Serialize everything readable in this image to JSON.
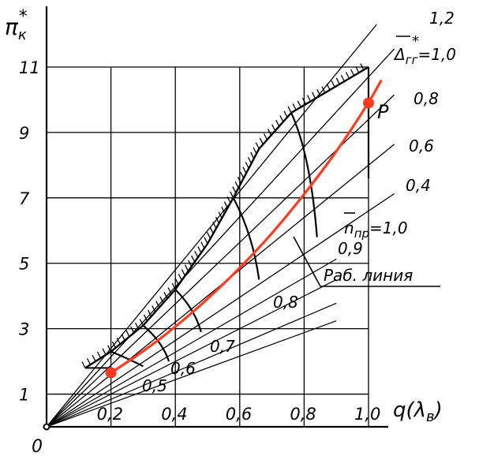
{
  "chart_data": {
    "type": "line",
    "ylabel": "π",
    "ylabel_sub": "к",
    "ylabel_sup": "*",
    "xlabel": "q(λ",
    "xlabel_sub": "в",
    "xlabel_close": ")",
    "origin_label": "0",
    "x_ticks": [
      "0,2",
      "0,4",
      "0,6",
      "0,8",
      "1,0"
    ],
    "y_ticks": [
      "1",
      "3",
      "5",
      "7",
      "9",
      "11"
    ],
    "x_tick_values": [
      0.2,
      0.4,
      0.6,
      0.8,
      1.0
    ],
    "y_tick_values": [
      1,
      3,
      5,
      7,
      9,
      11
    ],
    "xlim": [
      0,
      1.05
    ],
    "ylim": [
      0,
      12.5
    ],
    "grid": true,
    "delta_label": "Δ",
    "delta_sub": "гг",
    "delta_eq": "=1,0",
    "delta_sup": "*",
    "n_label": "n",
    "n_sub": "пр",
    "n_eq": "=1,0",
    "annotation_label": "Раб. линия",
    "point_label": "P",
    "throttle_rays": [
      {
        "label": "1,2",
        "slope": 12.0
      },
      {
        "label": "",
        "slope": 10.7
      },
      {
        "label": "0,8",
        "slope": 9.4
      },
      {
        "label": "0,6",
        "slope": 8.0
      },
      {
        "label": "0,4",
        "slope": 6.6
      }
    ],
    "surge_line": [
      [
        0.12,
        1.8
      ],
      [
        0.2,
        2.3
      ],
      [
        0.3,
        3.1
      ],
      [
        0.4,
        4.2
      ],
      [
        0.5,
        5.6
      ],
      [
        0.58,
        7.0
      ],
      [
        0.66,
        8.5
      ],
      [
        0.76,
        9.6
      ],
      [
        0.88,
        10.3
      ],
      [
        1.0,
        11.0
      ]
    ],
    "left_boundary": [
      [
        0.12,
        1.8
      ],
      [
        0.2,
        1.8
      ],
      [
        0.3,
        2.3
      ],
      [
        0.4,
        3.0
      ],
      [
        0.5,
        3.8
      ],
      [
        0.6,
        4.6
      ],
      [
        0.7,
        5.5
      ],
      [
        0.8,
        6.4
      ],
      [
        0.9,
        7.6
      ],
      [
        1.0,
        8.6
      ]
    ],
    "operating_line": [
      [
        0.2,
        1.65
      ],
      [
        0.3,
        2.3
      ],
      [
        0.4,
        3.05
      ],
      [
        0.5,
        3.9
      ],
      [
        0.6,
        4.85
      ],
      [
        0.7,
        5.9
      ],
      [
        0.8,
        7.1
      ],
      [
        0.9,
        8.4
      ],
      [
        1.0,
        9.9
      ],
      [
        1.04,
        10.6
      ]
    ],
    "operating_points": [
      {
        "x": 0.2,
        "y": 1.65,
        "label": ""
      },
      {
        "x": 1.0,
        "y": 9.9,
        "label": "P"
      }
    ],
    "speed_lines": [
      {
        "label": "0,5",
        "points": [
          [
            0.2,
            2.3
          ],
          [
            0.25,
            2.1
          ],
          [
            0.3,
            1.85
          ]
        ]
      },
      {
        "label": "0,6",
        "points": [
          [
            0.3,
            3.1
          ],
          [
            0.36,
            2.6
          ],
          [
            0.38,
            2.0
          ]
        ]
      },
      {
        "label": "0,7",
        "points": [
          [
            0.4,
            4.2
          ],
          [
            0.46,
            3.6
          ],
          [
            0.48,
            2.9
          ]
        ]
      },
      {
        "label": "0,8",
        "points": [
          [
            0.58,
            7.0
          ],
          [
            0.64,
            5.9
          ],
          [
            0.66,
            4.5
          ]
        ]
      },
      {
        "label": "0,9",
        "points": [
          [
            0.76,
            9.6
          ],
          [
            0.82,
            8.3
          ],
          [
            0.84,
            5.8
          ]
        ]
      },
      {
        "label": "",
        "points": [
          [
            1.0,
            11.0
          ],
          [
            1.0,
            7.6
          ]
        ]
      }
    ],
    "colors": {
      "operating_line": "#ff3b1f",
      "lines": "#000000",
      "background": "#ffffff"
    }
  }
}
